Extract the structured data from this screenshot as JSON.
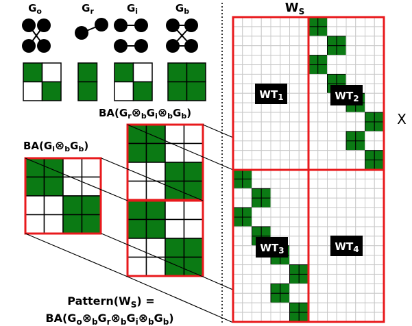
{
  "graphs": [
    {
      "id": "o",
      "label": "G",
      "sub": "o",
      "matrix": [
        [
          1,
          0
        ],
        [
          0,
          1
        ]
      ]
    },
    {
      "id": "r",
      "label": "G",
      "sub": "r",
      "matrix": [
        [
          1
        ],
        [
          1
        ]
      ]
    },
    {
      "id": "i",
      "label": "G",
      "sub": "i",
      "matrix": [
        [
          1,
          0
        ],
        [
          0,
          1
        ]
      ]
    },
    {
      "id": "b",
      "label": "G",
      "sub": "b",
      "matrix": [
        [
          1,
          1
        ],
        [
          1,
          1
        ]
      ]
    }
  ],
  "labels": {
    "ba_i_b": [
      "BA(G",
      "i",
      "⊗",
      "b",
      "G",
      "b",
      ")"
    ],
    "ba_r_i_b": [
      "BA(G",
      "r",
      "⊗",
      "b",
      "G",
      "i",
      "⊗",
      "b",
      "G",
      "b",
      ")"
    ],
    "ws": [
      "W",
      "S"
    ],
    "x": "X",
    "pattern": [
      "Pattern(W",
      "S",
      ") ="
    ],
    "pattern_eq": [
      "BA(G",
      "o",
      "⊗",
      "b",
      "G",
      "r",
      "⊗",
      "b",
      "G",
      "i",
      "⊗",
      "b",
      "G",
      "b",
      ")"
    ],
    "wt": [
      [
        "WT",
        "1"
      ],
      [
        "WT",
        "2"
      ],
      [
        "WT",
        "3"
      ],
      [
        "WT",
        "4"
      ]
    ]
  },
  "colors": {
    "green": "#0b7a14",
    "red": "#e8191c",
    "grid": "#c9c9c9",
    "black": "#000000"
  }
}
